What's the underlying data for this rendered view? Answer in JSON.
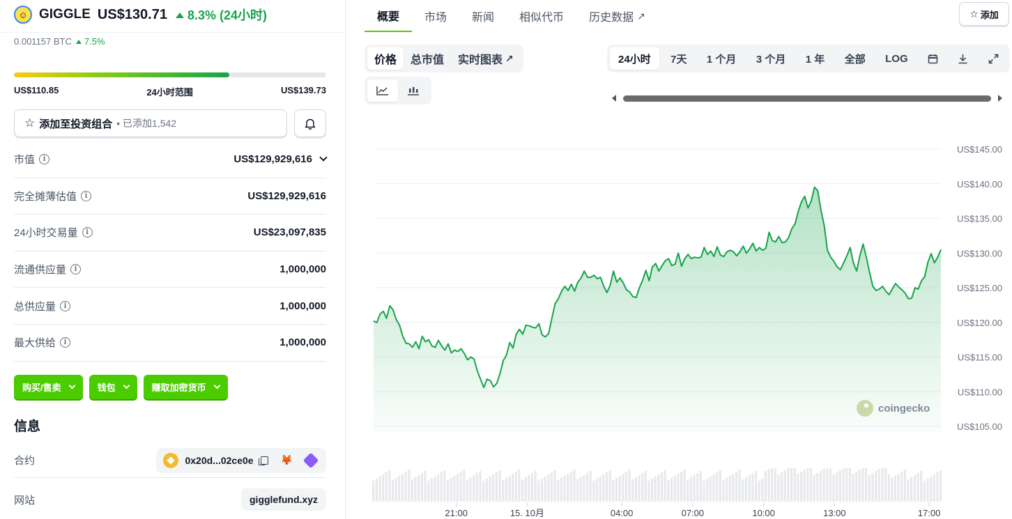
{
  "coin": {
    "name": "GIGGLE",
    "price": "US$130.71",
    "change": "8.3% (24小时)",
    "btc_price": "0.001157 BTC",
    "btc_change": "7.5%"
  },
  "range": {
    "low": "US$110.85",
    "label": "24小时范围",
    "high": "US$139.73",
    "position": 0.69
  },
  "portfolio": {
    "label": "添加至投资组合",
    "added": "• 已添加1,542"
  },
  "stats": [
    {
      "label": "市值",
      "value": "US$129,929,616",
      "has_dropdown": true
    },
    {
      "label": "完全摊薄估值",
      "value": "US$129,929,616"
    },
    {
      "label": "24小时交易量",
      "value": "US$23,097,835"
    },
    {
      "label": "流通供应量",
      "value": "1,000,000"
    },
    {
      "label": "总供应量",
      "value": "1,000,000"
    },
    {
      "label": "最大供给",
      "value": "1,000,000"
    }
  ],
  "actions": {
    "buy_sell": "购买/售卖",
    "wallet": "钱包",
    "earn": "赚取加密货币"
  },
  "info": {
    "title": "信息",
    "contract_label": "合约",
    "contract_value": "0x20d...02ce0e",
    "website_label": "网站",
    "website_value": "gigglefund.xyz"
  },
  "nav": {
    "tabs": [
      "概要",
      "市场",
      "新闻",
      "相似代币",
      "历史数据"
    ],
    "add_label": "添加"
  },
  "chart_controls": {
    "metrics": [
      "价格",
      "总市值",
      "实时图表"
    ],
    "ranges": [
      "24小时",
      "7天",
      "1 个月",
      "3 个月",
      "1 年",
      "全部",
      "LOG"
    ]
  },
  "colors": {
    "accent": "#4bcc00",
    "line": "#16a34a",
    "up": "#16a34a"
  },
  "chart_data": {
    "type": "area",
    "watermark": "coingecko",
    "y_ticks": [
      "US$145.00",
      "US$140.00",
      "US$135.00",
      "US$130.00",
      "US$125.00",
      "US$120.00",
      "US$115.00",
      "US$110.00",
      "US$105.00"
    ],
    "ylim": [
      105,
      145
    ],
    "x_ticks": [
      {
        "label": "21:00",
        "t": 3.5
      },
      {
        "label": "15. 10月",
        "t": 6.5
      },
      {
        "label": "04:00",
        "t": 10.5
      },
      {
        "label": "07:00",
        "t": 13.5
      },
      {
        "label": "10:00",
        "t": 16.5
      },
      {
        "label": "13:00",
        "t": 19.5
      },
      {
        "label": "17:00",
        "t": 23.5
      }
    ],
    "xlim": [
      0,
      24
    ],
    "series": [
      {
        "values": [
          120.2,
          120.0,
          121.2,
          121.6,
          120.6,
          122.4,
          121.8,
          120.4,
          119.6,
          118.0,
          117.0,
          116.9,
          116.4,
          117.2,
          116.2,
          118.0,
          117.2,
          117.5,
          116.6,
          116.4,
          117.4,
          116.6,
          116.0,
          116.9,
          115.6,
          116.0,
          115.8,
          116.2,
          115.5,
          114.6,
          115.0,
          114.7,
          113.0,
          111.8,
          110.6,
          111.8,
          111.6,
          110.7,
          111.2,
          112.6,
          114.5,
          115.3,
          117.1,
          116.3,
          118.3,
          119.0,
          118.3,
          119.6,
          119.5,
          119.3,
          119.2,
          119.8,
          118.2,
          117.9,
          118.4,
          120.6,
          122.7,
          123.4,
          124.5,
          125.2,
          124.6,
          125.5,
          124.5,
          125.8,
          126.4,
          127.4,
          126.5,
          126.5,
          126.8,
          126.3,
          126.5,
          125.2,
          124.3,
          125.4,
          127.4,
          125.8,
          126.4,
          125.7,
          124.7,
          124.4,
          123.7,
          123.6,
          125.0,
          126.1,
          127.5,
          126.0,
          128.0,
          128.5,
          127.4,
          128.2,
          128.9,
          129.2,
          128.2,
          128.4,
          130.0,
          128.1,
          129.2,
          129.8,
          129.2,
          129.4,
          129.3,
          129.4,
          130.8,
          129.8,
          130.3,
          129.5,
          130.9,
          129.7,
          129.5,
          130.2,
          130.4,
          130.2,
          129.6,
          130.2,
          131.0,
          130.0,
          130.6,
          131.4,
          130.3,
          130.8,
          130.4,
          130.7,
          133.0,
          131.8,
          131.6,
          132.4,
          131.5,
          131.6,
          132.2,
          133.5,
          134.2,
          136.0,
          137.4,
          138.2,
          136.5,
          137.5,
          139.5,
          139.0,
          136.2,
          134.0,
          130.4,
          129.4,
          128.8,
          128.0,
          127.6,
          128.6,
          129.6,
          130.8,
          128.6,
          127.4,
          129.6,
          131.3,
          129.4,
          127.2,
          125.2,
          124.6,
          124.8,
          125.2,
          124.5,
          124.0,
          124.8,
          125.6,
          125.1,
          124.7,
          124.2,
          123.4,
          123.5,
          125.0,
          124.8,
          126.0,
          126.6,
          128.7,
          129.9,
          128.6,
          129.4,
          130.5
        ]
      }
    ]
  }
}
